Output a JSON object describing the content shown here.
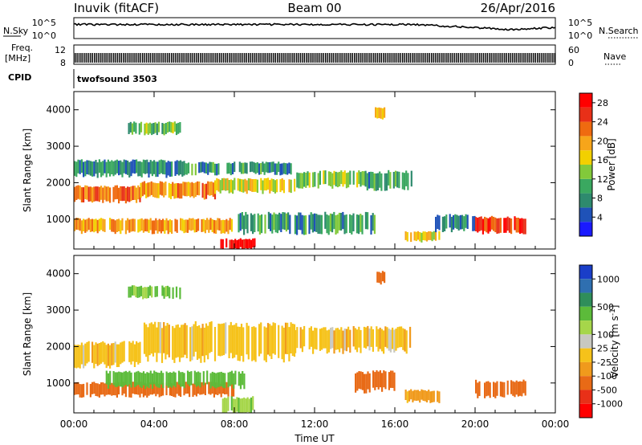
{
  "header": {
    "radar": "Inuvik (fitACF)",
    "beam": "Beam 00",
    "date": "26/Apr/2016"
  },
  "noise_panel": {
    "left_label": "N.Sky",
    "right_label": "N.Search",
    "ticks": [
      "10^5",
      "10^0"
    ]
  },
  "freq_panel": {
    "left_label_line1": "Freq.",
    "left_label_line2": "[MHz]",
    "left_ticks": [
      "12",
      "8"
    ],
    "right_label": "Nave",
    "right_ticks": [
      "60",
      "0"
    ]
  },
  "cpid": {
    "label": "CPID",
    "value": "twofsound 3503"
  },
  "colors": {
    "power": [
      "#1a1aff",
      "#1f52b8",
      "#2e8a6e",
      "#3aa860",
      "#82c93a",
      "#f2d000",
      "#f7a51a",
      "#ef6a10",
      "#e83018",
      "#ff0000"
    ],
    "velocity": [
      "#1a3ec8",
      "#2f6fb0",
      "#2f8e5a",
      "#5cbb3a",
      "#a6d64a",
      "#c8c8c0",
      "#f6c21a",
      "#f09a1c",
      "#e86a16",
      "#e83018",
      "#ff0000"
    ]
  },
  "chart_data": [
    {
      "type": "heatmap",
      "title": "",
      "xlabel": "Time UT",
      "ylabel": "Slant Range [km]",
      "x_ticks": [
        "00:00",
        "04:00",
        "08:00",
        "12:00",
        "16:00",
        "20:00",
        "00:00"
      ],
      "x_range_hours": [
        0,
        24
      ],
      "y_ticks": [
        1000,
        2000,
        3000,
        4000
      ],
      "y_range_km": [
        180,
        4500
      ],
      "colorbar": {
        "label": "Power [dB]",
        "ticks": [
          "4",
          "8",
          "12",
          "16",
          "20",
          "24",
          "28"
        ],
        "range": [
          0,
          30
        ]
      },
      "echo_bands": [
        {
          "start": 0.0,
          "end": 3.3,
          "range_km": [
            1500,
            1900
          ],
          "value": 22
        },
        {
          "start": 3.3,
          "end": 7.0,
          "range_km": [
            1600,
            2000
          ],
          "value": 21
        },
        {
          "start": 7.0,
          "end": 11.0,
          "range_km": [
            1750,
            2100
          ],
          "value": 16
        },
        {
          "start": 11.0,
          "end": 14.5,
          "range_km": [
            1900,
            2300
          ],
          "value": 13
        },
        {
          "start": 14.5,
          "end": 16.8,
          "range_km": [
            1850,
            2300
          ],
          "value": 9
        },
        {
          "start": 0.0,
          "end": 5.5,
          "range_km": [
            2200,
            2600
          ],
          "value": 8
        },
        {
          "start": 5.5,
          "end": 11.0,
          "range_km": [
            2250,
            2550
          ],
          "value": 9
        },
        {
          "start": 0.0,
          "end": 8.0,
          "range_km": [
            650,
            1000
          ],
          "value": 20
        },
        {
          "start": 8.0,
          "end": 15.0,
          "range_km": [
            650,
            1150
          ],
          "value": 9
        },
        {
          "start": 16.5,
          "end": 18.2,
          "range_km": [
            400,
            650
          ],
          "value": 17
        },
        {
          "start": 18.0,
          "end": 20.0,
          "range_km": [
            700,
            1100
          ],
          "value": 7
        },
        {
          "start": 20.0,
          "end": 22.5,
          "range_km": [
            650,
            1050
          ],
          "value": 25
        },
        {
          "start": 7.3,
          "end": 9.0,
          "range_km": [
            190,
            450
          ],
          "value": 29
        },
        {
          "start": 2.7,
          "end": 5.3,
          "range_km": [
            3350,
            3650
          ],
          "value": 12
        },
        {
          "start": 15.0,
          "end": 15.5,
          "range_km": [
            3750,
            4050
          ],
          "value": 20
        }
      ]
    },
    {
      "type": "heatmap",
      "title": "",
      "xlabel": "Time UT",
      "ylabel": "Slant Range [km]",
      "x_ticks": [
        "00:00",
        "04:00",
        "08:00",
        "12:00",
        "16:00",
        "20:00",
        "00:00"
      ],
      "x_range_hours": [
        0,
        24
      ],
      "y_ticks": [
        1000,
        2000,
        3000,
        4000
      ],
      "y_range_km": [
        180,
        4500
      ],
      "colorbar": {
        "label": "Velocity [m s-1]",
        "label_main": "Velocity [m s",
        "label_sup": "-1",
        "label_end": "]",
        "ticks": [
          "1000",
          "500",
          "100",
          "25",
          "-25",
          "-100",
          "-500",
          "-1000"
        ]
      },
      "echo_bands": [
        {
          "start": 0.0,
          "end": 3.3,
          "range_km": [
            1500,
            2100
          ],
          "value": 0
        },
        {
          "start": 3.3,
          "end": 11.0,
          "range_km": [
            1700,
            2600
          ],
          "value": 0
        },
        {
          "start": 11.0,
          "end": 16.8,
          "range_km": [
            1900,
            2500
          ],
          "value": 0
        },
        {
          "start": 0.0,
          "end": 8.0,
          "range_km": [
            650,
            1000
          ],
          "value": -150
        },
        {
          "start": 1.5,
          "end": 8.5,
          "range_km": [
            900,
            1300
          ],
          "value": 150
        },
        {
          "start": 14.0,
          "end": 16.0,
          "range_km": [
            800,
            1300
          ],
          "value": -150
        },
        {
          "start": 16.5,
          "end": 18.2,
          "range_km": [
            500,
            800
          ],
          "value": -40
        },
        {
          "start": 20.0,
          "end": 22.5,
          "range_km": [
            650,
            1050
          ],
          "value": -180
        },
        {
          "start": 7.3,
          "end": 9.0,
          "range_km": [
            190,
            600
          ],
          "value": 80
        },
        {
          "start": 2.7,
          "end": 5.3,
          "range_km": [
            3350,
            3650
          ],
          "value": 100
        },
        {
          "start": 15.0,
          "end": 15.5,
          "range_km": [
            3750,
            4050
          ],
          "value": -120
        }
      ]
    }
  ]
}
